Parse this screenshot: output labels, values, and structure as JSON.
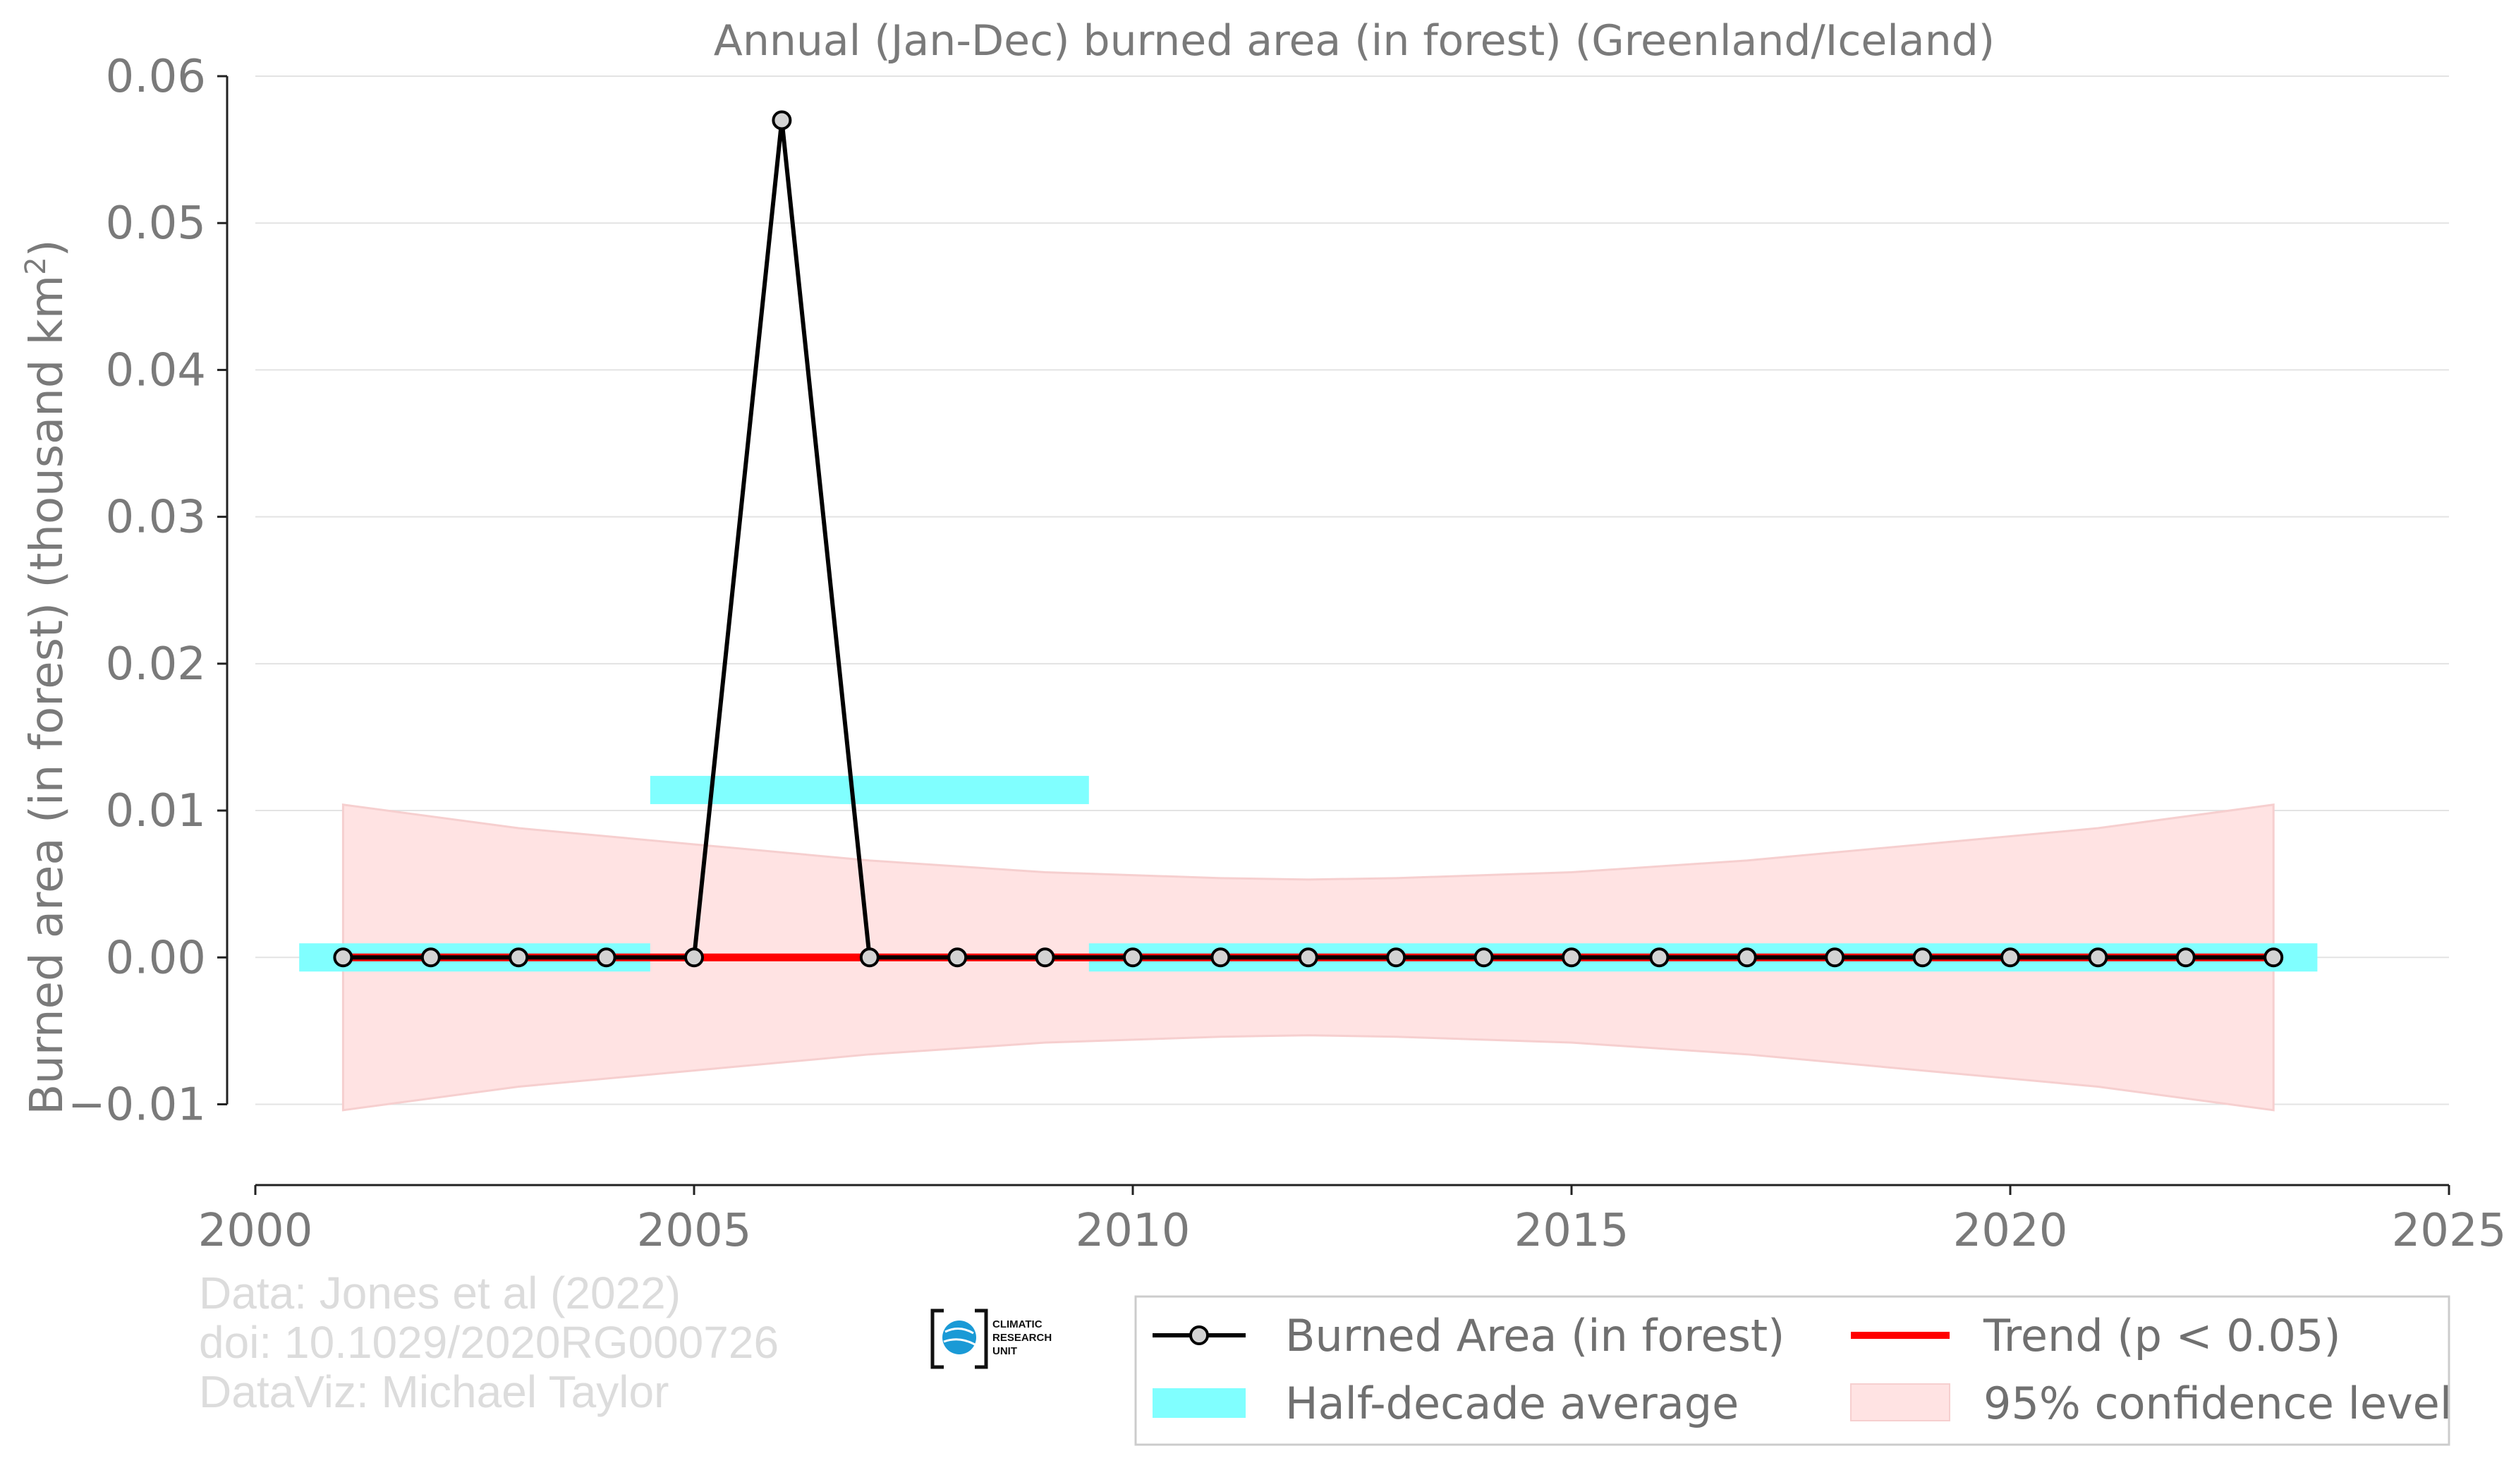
{
  "chart_data": {
    "type": "line",
    "title": "Annual (Jan-Dec) burned area (in forest) (Greenland/Iceland)",
    "ylabel": "Burned area (in forest) (thousand km",
    "ylabel_sup": "2",
    "ylabel_close": ")",
    "xlim": [
      2000,
      2025
    ],
    "ylim": [
      -0.0155,
      0.06
    ],
    "xticks": [
      2000,
      2005,
      2010,
      2015,
      2020,
      2025
    ],
    "xtick_labels": [
      "2000",
      "2005",
      "2010",
      "2015",
      "2020",
      "2025"
    ],
    "yticks": [
      -0.01,
      0.0,
      0.01,
      0.02,
      0.03,
      0.04,
      0.05,
      0.06
    ],
    "ytick_labels": [
      "−0.01",
      "0.00",
      "0.01",
      "0.02",
      "0.03",
      "0.04",
      "0.05",
      "0.06"
    ],
    "grid": "horizontal",
    "series": [
      {
        "name": "Burned Area (in forest)",
        "color": "#000000",
        "marker_fill": "#d3d3d3",
        "x": [
          2001,
          2002,
          2003,
          2004,
          2005,
          2006,
          2007,
          2008,
          2009,
          2010,
          2011,
          2012,
          2013,
          2014,
          2015,
          2016,
          2017,
          2018,
          2019,
          2020,
          2021,
          2022,
          2023
        ],
        "y": [
          0,
          0,
          0,
          0,
          0,
          0.057,
          0,
          0,
          0,
          0,
          0,
          0,
          0,
          0,
          0,
          0,
          0,
          0,
          0,
          0,
          0,
          0,
          0
        ]
      }
    ],
    "half_decade_average": {
      "name": "Half-decade average",
      "color": "#80ffff",
      "segments": [
        {
          "x0": 2000.5,
          "x1": 2004.5,
          "y": 0.0
        },
        {
          "x0": 2004.5,
          "x1": 2009.5,
          "y": 0.0114
        },
        {
          "x0": 2009.5,
          "x1": 2023.5,
          "y": 0.0
        }
      ]
    },
    "trend": {
      "name": "Trend (p < 0.05)",
      "color": "#ff0000",
      "x0": 2001,
      "x1": 2023,
      "y0": 0.0,
      "y1": 0.0
    },
    "confidence": {
      "name": "95% confidence level",
      "color": "#ffe3e3",
      "edge_color": "#f6cfcf",
      "x": [
        2001,
        2003,
        2005,
        2007,
        2009,
        2011,
        2012,
        2013,
        2015,
        2017,
        2019,
        2021,
        2023
      ],
      "upper": [
        0.0104,
        0.0088,
        0.0077,
        0.0066,
        0.0058,
        0.0054,
        0.0053,
        0.0054,
        0.0058,
        0.0066,
        0.0077,
        0.0088,
        0.0104
      ],
      "lower": [
        -0.0104,
        -0.0088,
        -0.0077,
        -0.0066,
        -0.0058,
        -0.0054,
        -0.0053,
        -0.0054,
        -0.0058,
        -0.0066,
        -0.0077,
        -0.0088,
        -0.0104
      ]
    },
    "legend": {
      "placement": "bottom-right",
      "entries": [
        "Burned Area (in forest)",
        "Trend (p < 0.05)",
        "Half-decade average",
        "95% confidence level"
      ]
    }
  },
  "credits": [
    "Data: Jones et al (2022)",
    "doi: 10.1029/2020RG000726",
    "DataViz: Michael Taylor"
  ],
  "logo": {
    "lines": [
      "CLIMATIC",
      "RESEARCH",
      "UNIT"
    ],
    "color": "#1a9ad6"
  }
}
